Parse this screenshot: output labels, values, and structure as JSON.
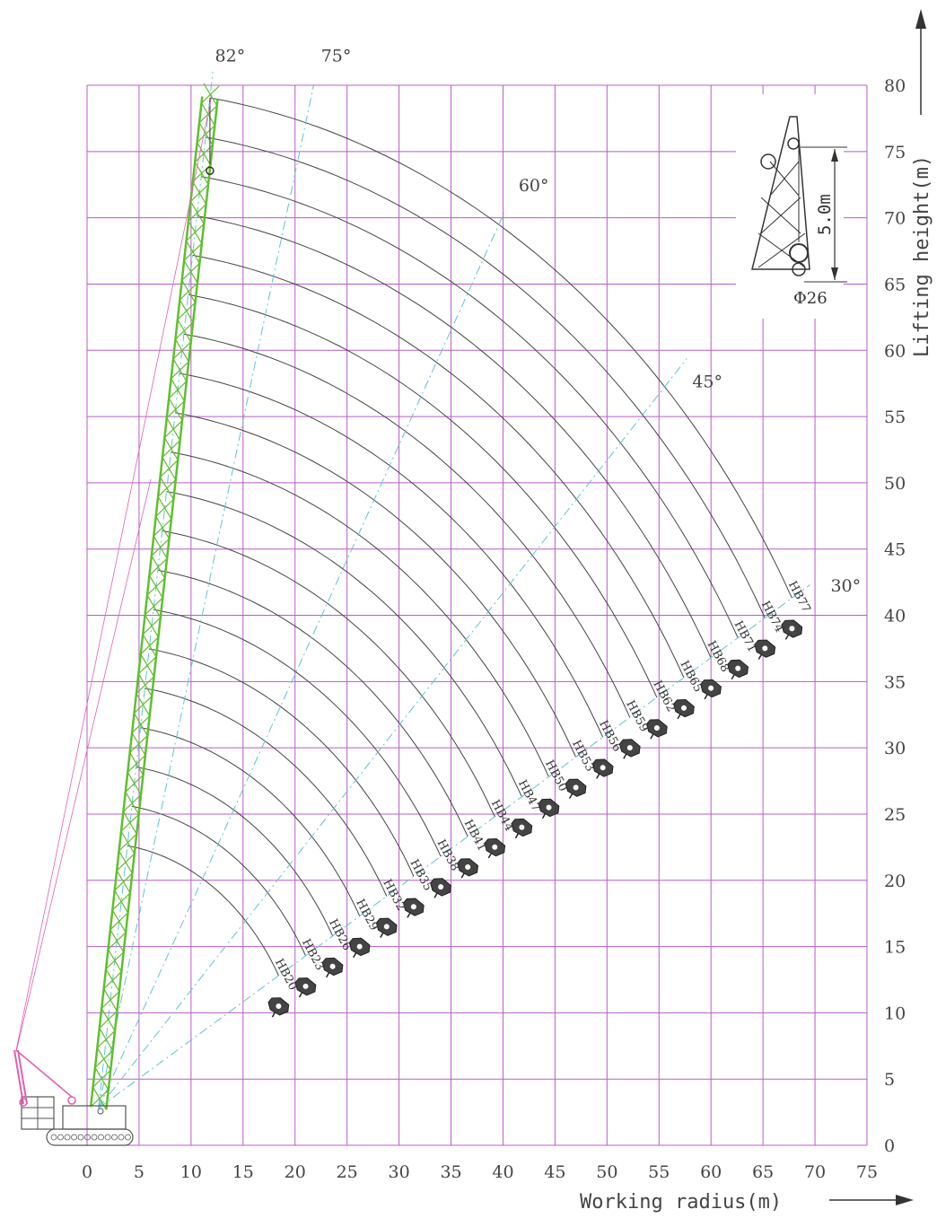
{
  "chart_data": {
    "type": "diagram",
    "x_axis": {
      "title": "Working radius(m)",
      "ticks": [
        "0",
        "5",
        "10",
        "15",
        "20",
        "25",
        "30",
        "35",
        "40",
        "45",
        "50",
        "55",
        "60",
        "65",
        "70",
        "75"
      ],
      "range": [
        0,
        75
      ]
    },
    "y_axis": {
      "title": "Lifting height(m)",
      "ticks": [
        "0",
        "5",
        "10",
        "15",
        "20",
        "25",
        "30",
        "35",
        "40",
        "45",
        "50",
        "55",
        "60",
        "65",
        "70",
        "75",
        "80"
      ],
      "range": [
        0,
        80
      ]
    },
    "grid": true,
    "boom_angles": [
      {
        "label": "82°",
        "deg": 82,
        "label_pos": [
          12.3,
          81.8
        ]
      },
      {
        "label": "75°",
        "deg": 75,
        "label_pos": [
          22.5,
          81.8
        ]
      },
      {
        "label": "60°",
        "deg": 60,
        "label_pos": [
          41.5,
          72.0
        ]
      },
      {
        "label": "45°",
        "deg": 45,
        "label_pos": [
          58.2,
          57.2
        ]
      },
      {
        "label": "30°",
        "deg": 30,
        "label_pos": [
          71.5,
          41.8
        ]
      }
    ],
    "boom_lengths": [
      "HB20",
      "HB23",
      "HB26",
      "HB29",
      "HB32",
      "HB35",
      "HB38",
      "HB41",
      "HB44",
      "HB47",
      "HB50",
      "HB53",
      "HB56",
      "HB59",
      "HB62",
      "HB65",
      "HB68",
      "HB71",
      "HB74",
      "HB77"
    ],
    "boom_values_m": [
      20,
      23,
      26,
      29,
      32,
      35,
      38,
      41,
      44,
      47,
      50,
      53,
      56,
      59,
      62,
      65,
      68,
      71,
      74,
      77
    ],
    "inset": {
      "dimension": "5.0m",
      "rope": "Φ26"
    }
  },
  "colors": {
    "grid": "#b85cc9",
    "boom": "#5fbf2e",
    "angle_line": "#5fc4d4",
    "curve": "#444444",
    "mast": "#e060b0"
  }
}
